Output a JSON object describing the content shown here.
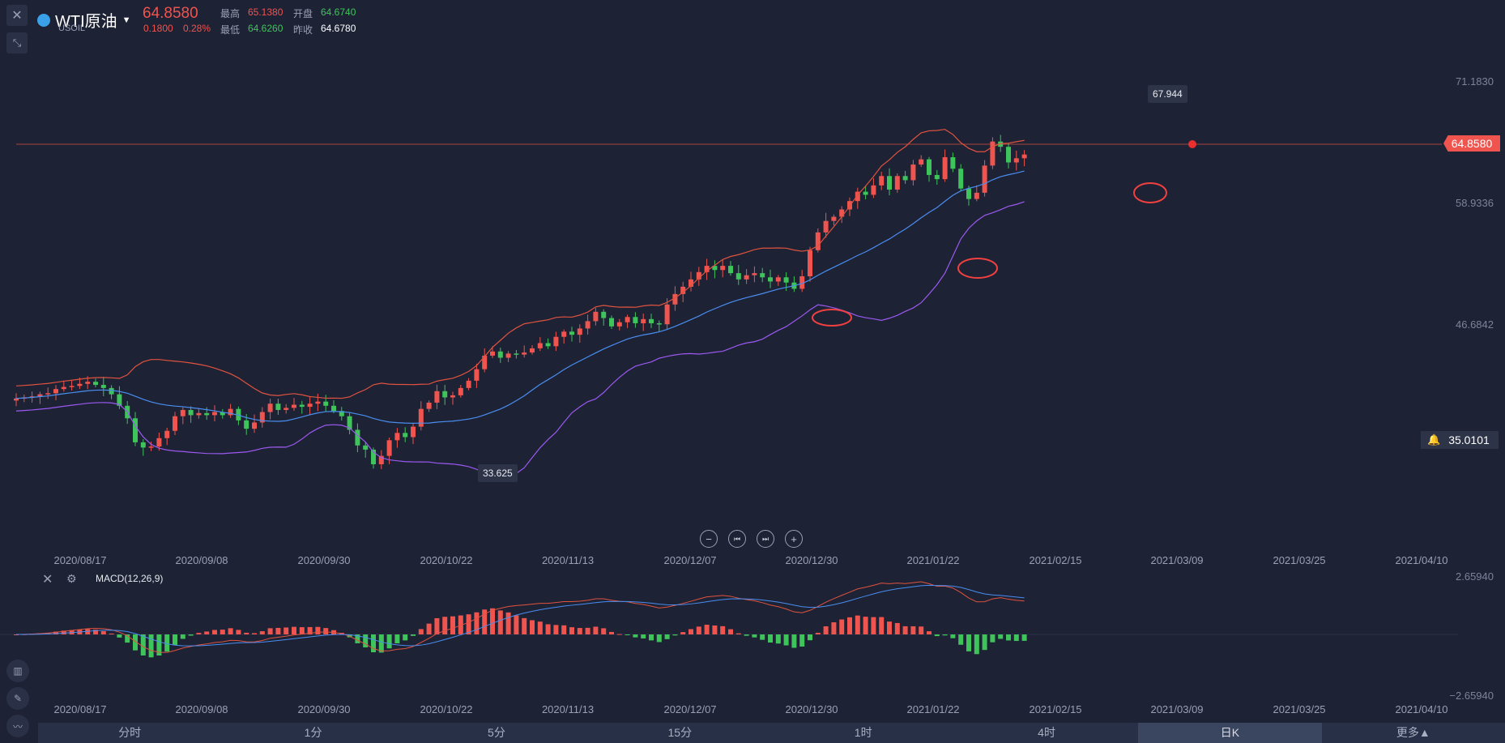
{
  "header": {
    "name": "WTI原油",
    "symbol": "USOIL",
    "price": "64.8580",
    "change": "0.1800",
    "change_pct": "0.28%",
    "high_label": "最高",
    "high": "65.1380",
    "open_label": "开盘",
    "open": "64.6740",
    "low_label": "最低",
    "low": "64.6260",
    "prev_label": "昨收",
    "prev": "64.6780"
  },
  "price_axis": {
    "labels": [
      "71.1830",
      "58.9336",
      "46.6842"
    ],
    "current_tag": "64.8580",
    "alert_value": "35.0101"
  },
  "markers": {
    "high": "67.944",
    "low": "33.625"
  },
  "x_axis_labels": [
    "2020/08/17",
    "2020/09/08",
    "2020/09/30",
    "2020/10/22",
    "2020/11/13",
    "2020/12/07",
    "2020/12/30",
    "2021/01/22",
    "2021/02/15",
    "2021/03/09",
    "2021/03/25",
    "2021/04/10"
  ],
  "macd": {
    "title": "MACD(12,26,9)",
    "axis_top": "2.65940",
    "axis_bottom": "−2.65940"
  },
  "timeframes": {
    "items": [
      "分时",
      "1分",
      "5分",
      "15分",
      "1时",
      "4时",
      "日K",
      "更多▲"
    ],
    "active": "日K"
  },
  "colors": {
    "up": "#f0544f",
    "down": "#3ec45a",
    "boll_upper": "#e0533f",
    "boll_mid": "#4a8ef0",
    "boll_lower": "#9b59f0",
    "background": "#1d2235"
  },
  "chart_data": {
    "type": "candlestick",
    "y_range": [
      30,
      75
    ],
    "close": [
      41.5,
      41.6,
      41.7,
      41.9,
      42.0,
      42.4,
      42.6,
      42.7,
      42.9,
      43.1,
      42.8,
      42.5,
      41.9,
      40.8,
      39.6,
      37.3,
      36.8,
      36.9,
      37.7,
      38.4,
      39.8,
      40.4,
      39.9,
      40.1,
      39.9,
      40.2,
      39.9,
      40.5,
      39.4,
      38.6,
      39.2,
      40.2,
      41.0,
      40.4,
      40.6,
      40.9,
      40.7,
      41.0,
      41.2,
      40.8,
      40.3,
      39.8,
      38.5,
      37.0,
      36.6,
      35.2,
      36.0,
      37.5,
      38.2,
      37.8,
      38.8,
      40.5,
      41.1,
      42.2,
      41.6,
      41.8,
      42.5,
      43.2,
      44.3,
      45.6,
      46.0,
      45.4,
      45.8,
      45.7,
      45.9,
      46.3,
      46.8,
      46.5,
      47.4,
      47.9,
      47.6,
      48.2,
      48.9,
      49.8,
      49.2,
      48.4,
      48.8,
      49.3,
      48.7,
      49.1,
      48.7,
      48.6,
      50.5,
      51.5,
      52.2,
      52.9,
      53.6,
      54.2,
      53.8,
      54.2,
      53.5,
      52.9,
      53.3,
      53.5,
      53.1,
      52.7,
      53.1,
      52.6,
      52.0,
      53.2,
      55.7,
      57.4,
      58.5,
      58.9,
      59.6,
      60.4,
      61.3,
      61.0,
      61.9,
      62.8,
      61.5,
      62.8,
      62.4,
      63.9,
      64.4,
      62.9,
      62.5,
      64.6,
      63.5,
      61.6,
      60.6,
      61.2,
      63.8,
      66.1,
      65.6,
      64.1,
      64.5,
      64.86
    ],
    "high_marker": 67.944,
    "low_marker": 33.625,
    "indicators": [
      "BOLL upper",
      "BOLL mid",
      "BOLL lower",
      "MACD(12,26,9)"
    ]
  }
}
